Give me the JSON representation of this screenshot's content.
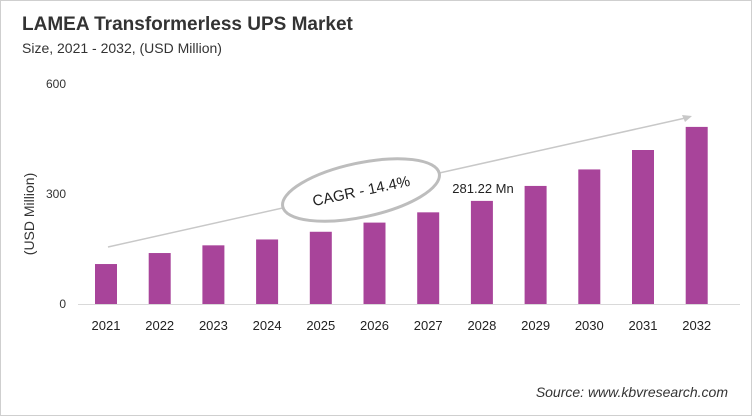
{
  "chart_data": {
    "type": "bar",
    "title": "LAMEA Transformerless UPS Market",
    "subtitle": "Size, 2021 - 2032, (USD Million)",
    "xlabel": "",
    "ylabel": "(USD Million)",
    "ylim": [
      0,
      600
    ],
    "yticks": [
      "0",
      "300",
      "600"
    ],
    "categories": [
      "2021",
      "2022",
      "2023",
      "2024",
      "2025",
      "2026",
      "2027",
      "2028",
      "2029",
      "2030",
      "2031",
      "2032"
    ],
    "values": [
      109,
      139,
      160,
      176,
      197,
      222,
      250,
      281.22,
      322,
      367,
      420,
      483
    ],
    "bar_color": "#a8449a",
    "grid": false,
    "annotations": {
      "cagr": "CAGR - 14.4%",
      "data_label": "281.22 Mn"
    },
    "source": "Source: www.kbvresearch.com"
  }
}
